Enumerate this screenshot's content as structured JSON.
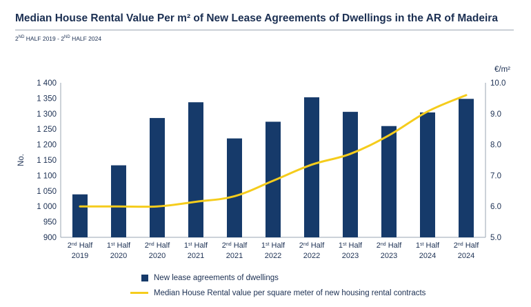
{
  "header": {
    "title": "Median House Rental Value Per m² of New Lease Agreements of Dwellings in the AR of Madeira",
    "subtitle": "2ND HALF 2019 - 2ND HALF 2024"
  },
  "colors": {
    "bars": "#163a6a",
    "line": "#f5cc1c",
    "text": "#1b2f52",
    "axis": "#9aa4b2"
  },
  "chart_data": {
    "type": "bar",
    "categories": [
      [
        "2nd Half",
        "2019"
      ],
      [
        "1st Half",
        "2020"
      ],
      [
        "2nd Half",
        "2020"
      ],
      [
        "1st Half",
        "2021"
      ],
      [
        "2nd Half",
        "2021"
      ],
      [
        "1st Half",
        "2022"
      ],
      [
        "2nd Half",
        "2022"
      ],
      [
        "1st Half",
        "2023"
      ],
      [
        "2nd Half",
        "2023"
      ],
      [
        "1st Half",
        "2024"
      ],
      [
        "2nd Half",
        "2024"
      ]
    ],
    "series": [
      {
        "name": "New lease agreements of dwellings",
        "type": "bar",
        "axis": "left",
        "values": [
          1039,
          1133,
          1286,
          1337,
          1220,
          1274,
          1353,
          1306,
          1260,
          1304,
          1348
        ]
      },
      {
        "name": "Median House Rental value per square meter of new housing rental contracts",
        "type": "line",
        "axis": "right",
        "values": [
          6.0,
          6.0,
          6.0,
          6.15,
          6.33,
          6.83,
          7.35,
          7.7,
          8.3,
          9.07,
          9.6
        ]
      }
    ],
    "ylabel": "No.",
    "y2label": "€/m²",
    "ylim": [
      900,
      1400
    ],
    "y2lim": [
      5.0,
      10.0
    ],
    "yticks": [
      "900",
      "950",
      "1 000",
      "1 050",
      "1 100",
      "1 150",
      "1 200",
      "1 250",
      "1 300",
      "1 350",
      "1 400"
    ],
    "y2ticks": [
      "5.0",
      "6.0",
      "7.0",
      "8.0",
      "9.0",
      "10.0"
    ],
    "grid": false,
    "legend": "bottom"
  }
}
